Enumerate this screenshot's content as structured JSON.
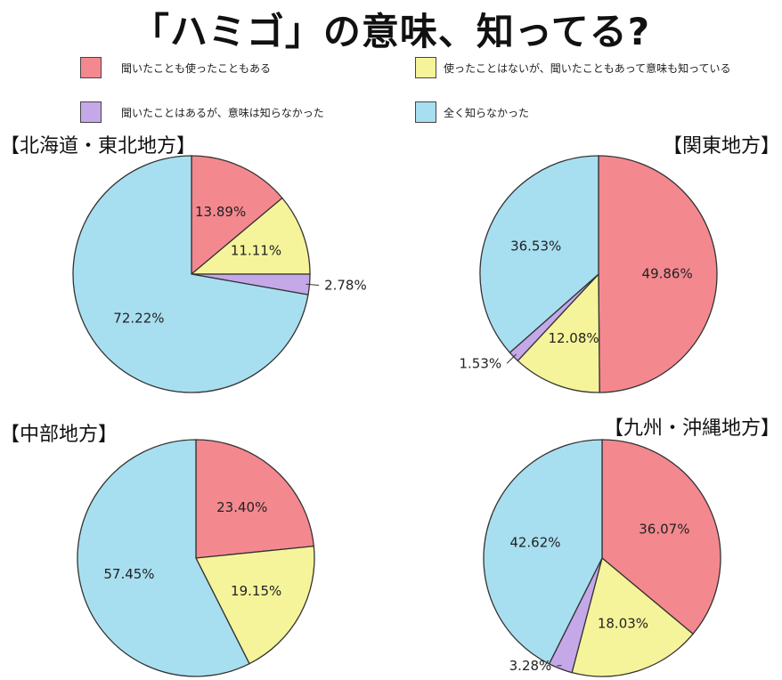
{
  "chart_data": {
    "type": "pie",
    "title": "「ハミゴ」の意味、知ってる?",
    "legend": [
      {
        "label": "聞いたことも使ったこともある",
        "color": "#f4888f"
      },
      {
        "label": "使ったことはないが、聞いたこともあって意味も知っている",
        "color": "#f5f49a"
      },
      {
        "label": "聞いたことはあるが、意味は知らなかった",
        "color": "#c4a8e8"
      },
      {
        "label": "全く知らなかった",
        "color": "#a8dff0"
      }
    ],
    "charts": [
      {
        "name": "【北海道・東北地方】",
        "values": [
          13.89,
          11.11,
          2.78,
          72.22
        ],
        "labels": [
          "13.89%",
          "11.11%",
          "2.78%",
          "72.22%"
        ]
      },
      {
        "name": "【関東地方】",
        "values": [
          49.86,
          12.08,
          1.53,
          36.53
        ],
        "labels": [
          "49.86%",
          "12.08%",
          "1.53%",
          "36.53%"
        ]
      },
      {
        "name": "【中部地方】",
        "values": [
          23.4,
          19.15,
          0,
          57.45
        ],
        "labels": [
          "23.40%",
          "19.15%",
          "",
          "57.45%"
        ]
      },
      {
        "name": "【九州・沖縄地方】",
        "values": [
          36.07,
          18.03,
          3.28,
          42.62
        ],
        "labels": [
          "36.07%",
          "18.03%",
          "3.28%",
          "42.62%"
        ]
      }
    ]
  }
}
